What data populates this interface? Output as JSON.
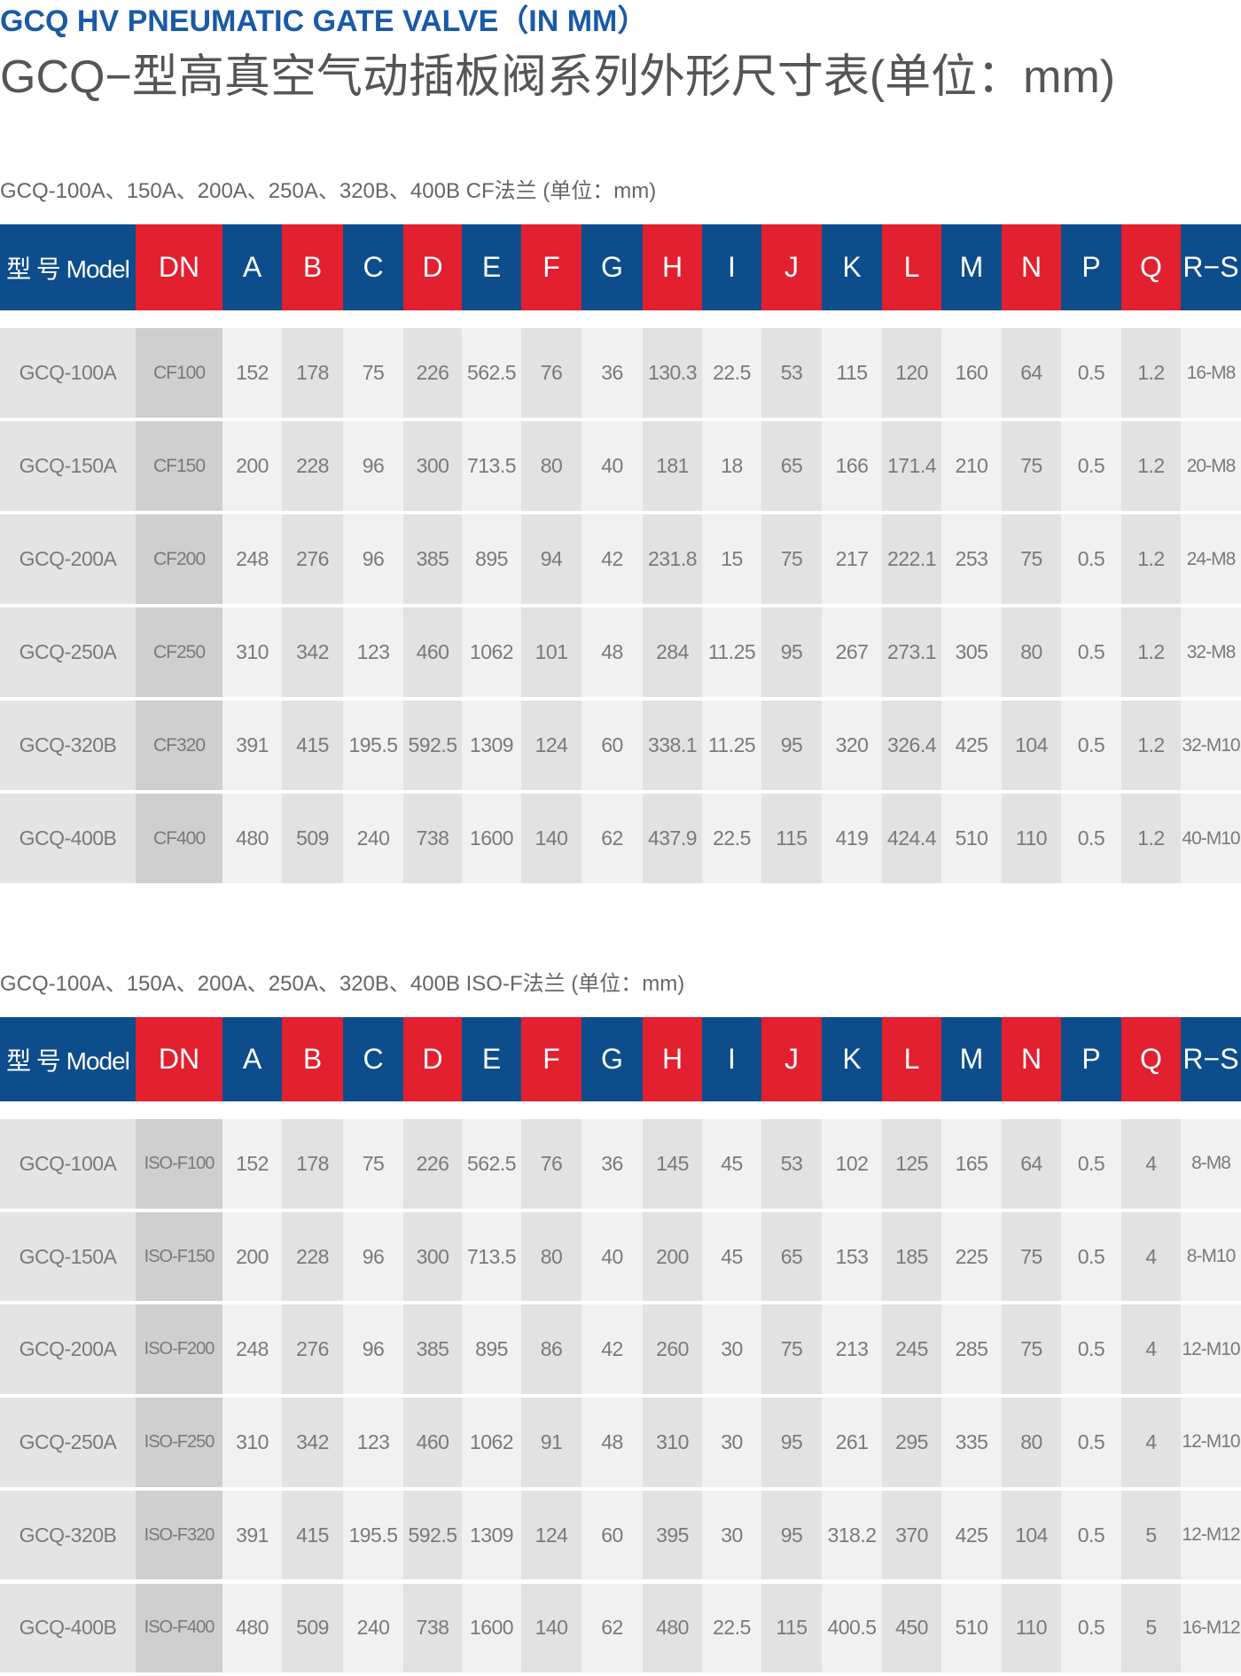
{
  "header": {
    "title": "GCQ HV PNEUMATIC GATE VALVE（IN MM）",
    "subtitle": "GCQ−型高真空气动插板阀系列外形尺寸表(单位：mm)"
  },
  "tables": [
    {
      "caption": "GCQ-100A、150A、200A、250A、320B、400B CF法兰 (单位：mm)",
      "header": [
        "型 号 Model",
        "DN",
        "A",
        "B",
        "C",
        "D",
        "E",
        "F",
        "G",
        "H",
        "I",
        "J",
        "K",
        "L",
        "M",
        "N",
        "P",
        "Q",
        "R−S"
      ],
      "rows": [
        [
          "GCQ-100A",
          "CF100",
          "152",
          "178",
          "75",
          "226",
          "562.5",
          "76",
          "36",
          "130.3",
          "22.5",
          "53",
          "115",
          "120",
          "160",
          "64",
          "0.5",
          "1.2",
          "16-M8"
        ],
        [
          "GCQ-150A",
          "CF150",
          "200",
          "228",
          "96",
          "300",
          "713.5",
          "80",
          "40",
          "181",
          "18",
          "65",
          "166",
          "171.4",
          "210",
          "75",
          "0.5",
          "1.2",
          "20-M8"
        ],
        [
          "GCQ-200A",
          "CF200",
          "248",
          "276",
          "96",
          "385",
          "895",
          "94",
          "42",
          "231.8",
          "15",
          "75",
          "217",
          "222.1",
          "253",
          "75",
          "0.5",
          "1.2",
          "24-M8"
        ],
        [
          "GCQ-250A",
          "CF250",
          "310",
          "342",
          "123",
          "460",
          "1062",
          "101",
          "48",
          "284",
          "11.25",
          "95",
          "267",
          "273.1",
          "305",
          "80",
          "0.5",
          "1.2",
          "32-M8"
        ],
        [
          "GCQ-320B",
          "CF320",
          "391",
          "415",
          "195.5",
          "592.5",
          "1309",
          "124",
          "60",
          "338.1",
          "11.25",
          "95",
          "320",
          "326.4",
          "425",
          "104",
          "0.5",
          "1.2",
          "32-M10"
        ],
        [
          "GCQ-400B",
          "CF400",
          "480",
          "509",
          "240",
          "738",
          "1600",
          "140",
          "62",
          "437.9",
          "22.5",
          "115",
          "419",
          "424.4",
          "510",
          "110",
          "0.5",
          "1.2",
          "40-M10"
        ]
      ]
    },
    {
      "caption": "GCQ-100A、150A、200A、250A、320B、400B ISO-F法兰 (单位：mm)",
      "header": [
        "型 号 Model",
        "DN",
        "A",
        "B",
        "C",
        "D",
        "E",
        "F",
        "G",
        "H",
        "I",
        "J",
        "K",
        "L",
        "M",
        "N",
        "P",
        "Q",
        "R−S"
      ],
      "rows": [
        [
          "GCQ-100A",
          "ISO-F100",
          "152",
          "178",
          "75",
          "226",
          "562.5",
          "76",
          "36",
          "145",
          "45",
          "53",
          "102",
          "125",
          "165",
          "64",
          "0.5",
          "4",
          "8-M8"
        ],
        [
          "GCQ-150A",
          "ISO-F150",
          "200",
          "228",
          "96",
          "300",
          "713.5",
          "80",
          "40",
          "200",
          "45",
          "65",
          "153",
          "185",
          "225",
          "75",
          "0.5",
          "4",
          "8-M10"
        ],
        [
          "GCQ-200A",
          "ISO-F200",
          "248",
          "276",
          "96",
          "385",
          "895",
          "86",
          "42",
          "260",
          "30",
          "75",
          "213",
          "245",
          "285",
          "75",
          "0.5",
          "4",
          "12-M10"
        ],
        [
          "GCQ-250A",
          "ISO-F250",
          "310",
          "342",
          "123",
          "460",
          "1062",
          "91",
          "48",
          "310",
          "30",
          "95",
          "261",
          "295",
          "335",
          "80",
          "0.5",
          "4",
          "12-M10"
        ],
        [
          "GCQ-320B",
          "ISO-F320",
          "391",
          "415",
          "195.5",
          "592.5",
          "1309",
          "124",
          "60",
          "395",
          "30",
          "95",
          "318.2",
          "370",
          "425",
          "104",
          "0.5",
          "5",
          "12-M12"
        ],
        [
          "GCQ-400B",
          "ISO-F400",
          "480",
          "509",
          "240",
          "738",
          "1600",
          "140",
          "62",
          "480",
          "22.5",
          "115",
          "400.5",
          "450",
          "510",
          "110",
          "0.5",
          "5",
          "16-M12"
        ]
      ]
    }
  ]
}
